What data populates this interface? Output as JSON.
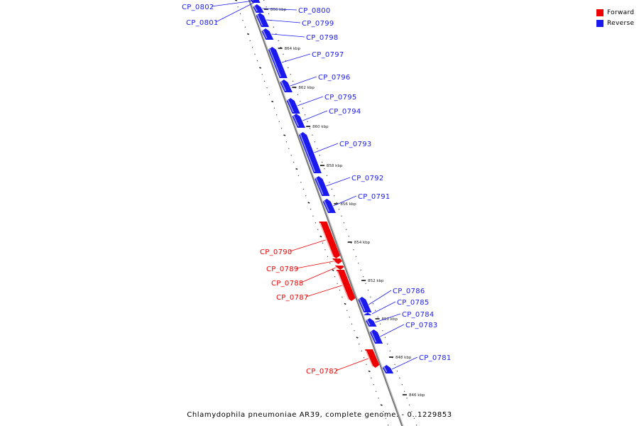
{
  "colors": {
    "forward": "#ee0000",
    "forward_light": "#ffb3b3",
    "reverse": "#1a1aee",
    "reverse_light": "#9999ff",
    "axis": "#888888",
    "tick": "#000000"
  },
  "legend": [
    {
      "label": "Forward",
      "strand": "forward"
    },
    {
      "label": "Reverse",
      "strand": "reverse"
    }
  ],
  "caption": "Chlamydophila pneumoniae AR39, complete genome. - 0..1229853",
  "ticks": [
    {
      "label": "866 kbp"
    },
    {
      "label": "864 kbp"
    },
    {
      "label": "862 kbp"
    },
    {
      "label": "860 kbp"
    },
    {
      "label": "858 kbp"
    },
    {
      "label": "856 kbp"
    },
    {
      "label": "854 kbp"
    },
    {
      "label": "852 kbp"
    },
    {
      "label": "850 kbp"
    },
    {
      "label": "848 kbp"
    },
    {
      "label": "846 kbp"
    }
  ],
  "genes": [
    {
      "name": "CP_0802",
      "strand": "reverse"
    },
    {
      "name": "CP_0801",
      "strand": "reverse"
    },
    {
      "name": "CP_0800",
      "strand": "reverse"
    },
    {
      "name": "CP_0799",
      "strand": "reverse"
    },
    {
      "name": "CP_0798",
      "strand": "reverse"
    },
    {
      "name": "CP_0797",
      "strand": "reverse"
    },
    {
      "name": "CP_0796",
      "strand": "reverse"
    },
    {
      "name": "CP_0795",
      "strand": "reverse"
    },
    {
      "name": "CP_0794",
      "strand": "reverse"
    },
    {
      "name": "CP_0793",
      "strand": "reverse"
    },
    {
      "name": "CP_0792",
      "strand": "reverse"
    },
    {
      "name": "CP_0791",
      "strand": "reverse"
    },
    {
      "name": "CP_0790",
      "strand": "forward"
    },
    {
      "name": "CP_0789",
      "strand": "forward"
    },
    {
      "name": "CP_0788",
      "strand": "forward"
    },
    {
      "name": "CP_0787",
      "strand": "forward"
    },
    {
      "name": "CP_0786",
      "strand": "reverse"
    },
    {
      "name": "CP_0785",
      "strand": "reverse"
    },
    {
      "name": "CP_0784",
      "strand": "reverse"
    },
    {
      "name": "CP_0783",
      "strand": "reverse"
    },
    {
      "name": "CP_0782",
      "strand": "forward"
    },
    {
      "name": "CP_0781",
      "strand": "reverse"
    }
  ]
}
